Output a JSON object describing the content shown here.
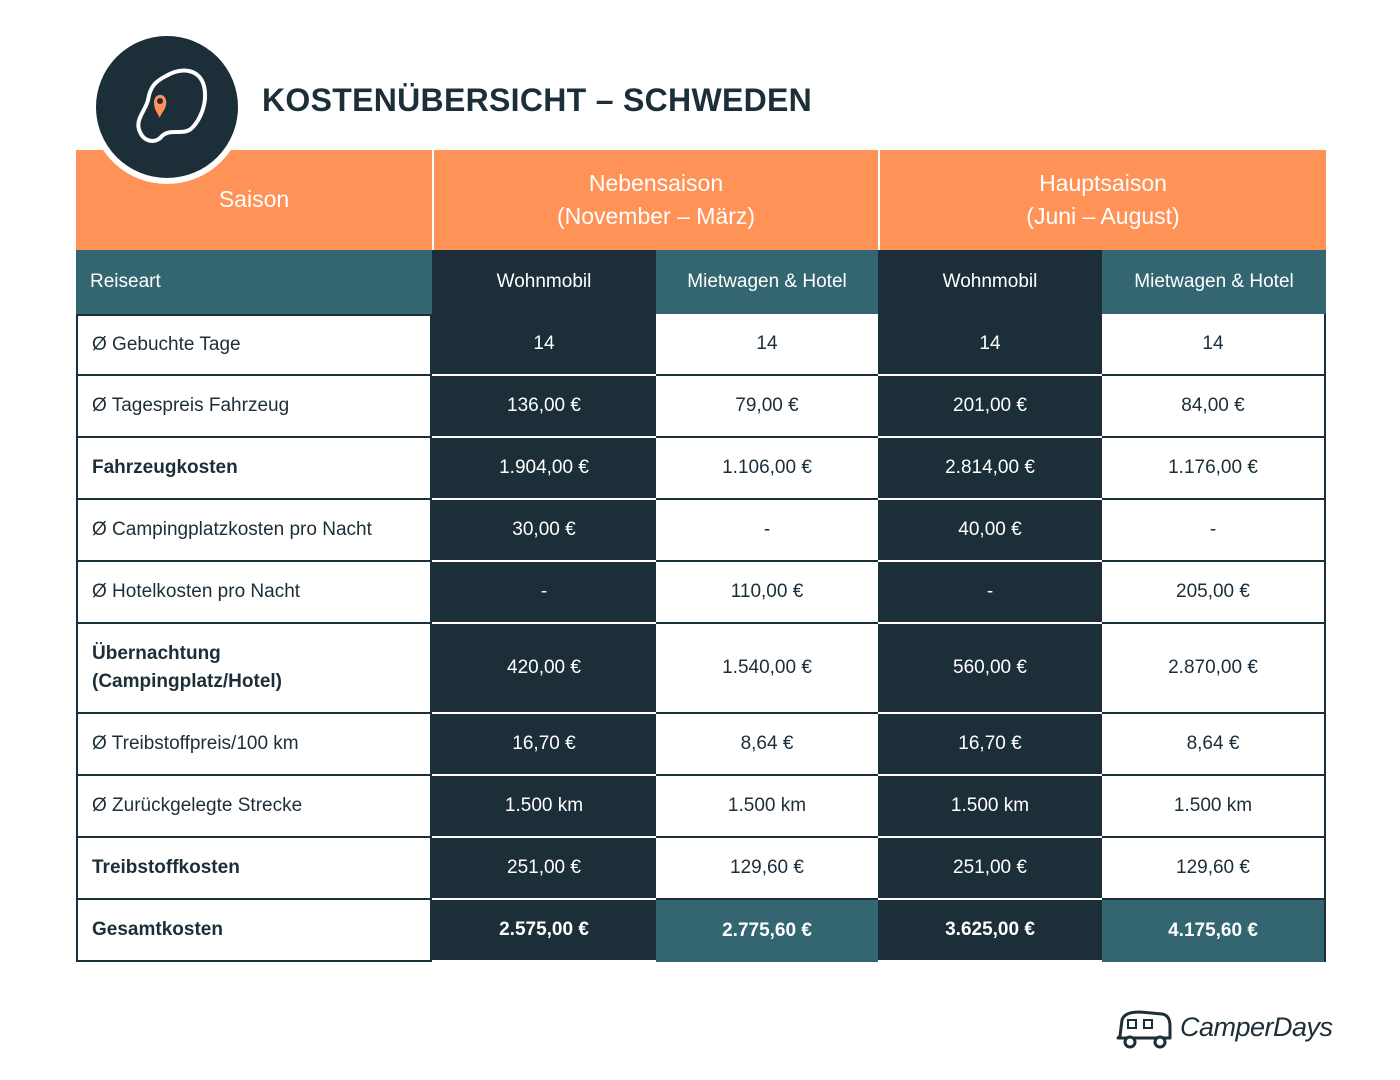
{
  "header": {
    "title": "KOSTENÜBERSICHT – SCHWEDEN"
  },
  "table": {
    "seasons": [
      {
        "name": "Saison"
      },
      {
        "name": "Nebensaison",
        "period": "(November – März)"
      },
      {
        "name": "Hauptsaison",
        "period": "(Juni – August)"
      }
    ],
    "columns": [
      "Reiseart",
      "Wohnmobil",
      "Mietwagen & Hotel",
      "Wohnmobil",
      "Mietwagen & Hotel"
    ],
    "rows": [
      [
        "Ø Gebuchte Tage",
        "14",
        "14",
        "14",
        "14"
      ],
      [
        "Ø Tagespreis Fahrzeug",
        "136,00 €",
        "79,00 €",
        "201,00 €",
        "84,00 €"
      ],
      [
        "Fahrzeugkosten",
        "1.904,00 €",
        "1.106,00 €",
        "2.814,00 €",
        "1.176,00 €"
      ],
      [
        "Ø Campingplatzkosten pro Nacht",
        "30,00 €",
        "-",
        "40,00 €",
        "-"
      ],
      [
        "Ø Hotelkosten pro Nacht",
        "-",
        "110,00 €",
        "-",
        "205,00 €"
      ],
      [
        "Übernachtung\n(Campingplatz/Hotel)",
        "420,00 €",
        "1.540,00 €",
        "560,00 €",
        "2.870,00 €"
      ],
      [
        "Ø Treibstoffpreis/100 km",
        "16,70 €",
        "8,64 €",
        "16,70 €",
        "8,64 €"
      ],
      [
        "Ø Zurückgelegte Strecke",
        "1.500 km",
        "1.500 km",
        "1.500 km",
        "1.500 km"
      ],
      [
        "Treibstoffkosten",
        "251,00 €",
        "129,60 €",
        "251,00 €",
        "129,60 €"
      ],
      [
        "Gesamtkosten",
        "2.575,00 €",
        "2.775,60 €",
        "3.625,00 €",
        "4.175,60 €"
      ]
    ]
  },
  "footer": {
    "brand": "CamperDays"
  }
}
